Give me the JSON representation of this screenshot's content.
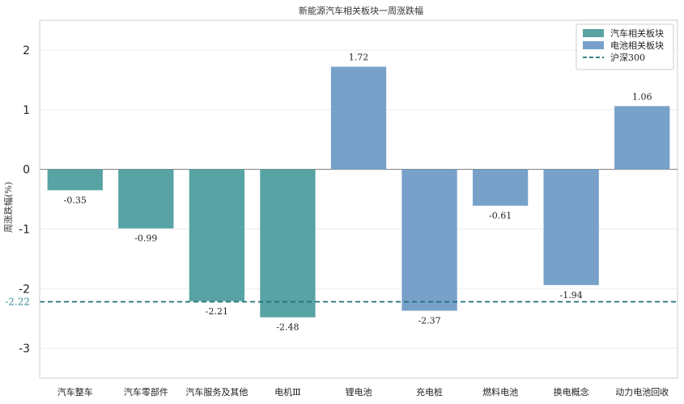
{
  "chart_data": {
    "type": "bar",
    "title": "新能源汽车相关板块一周涨跌幅",
    "ylabel": "周涨跌幅(%)",
    "xlabel": "",
    "ylim": [
      -3.5,
      2.5
    ],
    "yticks": [
      -3,
      -2,
      -1,
      0,
      1,
      2
    ],
    "grid": true,
    "legend_position": "top-right",
    "categories": [
      "汽车整车",
      "汽车零部件",
      "汽车服务及其他",
      "电机Ⅲ",
      "锂电池",
      "充电桩",
      "燃料电池",
      "换电概念",
      "动力电池回收"
    ],
    "values": [
      -0.35,
      -0.99,
      -2.21,
      -2.48,
      1.72,
      -2.37,
      -0.61,
      -1.94,
      1.06
    ],
    "value_labels": [
      "-0.35",
      "-0.99",
      "-2.21",
      "-2.48",
      "1.72",
      "-2.37",
      "-0.61",
      "-1.94",
      "1.06"
    ],
    "bar_groups": [
      0,
      0,
      0,
      0,
      1,
      1,
      1,
      1,
      1
    ],
    "series": [
      {
        "name": "汽车相关板块",
        "color": "#58a3a4"
      },
      {
        "name": "电池相关板块",
        "color": "#77a1c9"
      }
    ],
    "reference_line": {
      "name": "沪深300",
      "value": -2.22,
      "label": "-2.22",
      "color": "#1f6f78"
    }
  }
}
